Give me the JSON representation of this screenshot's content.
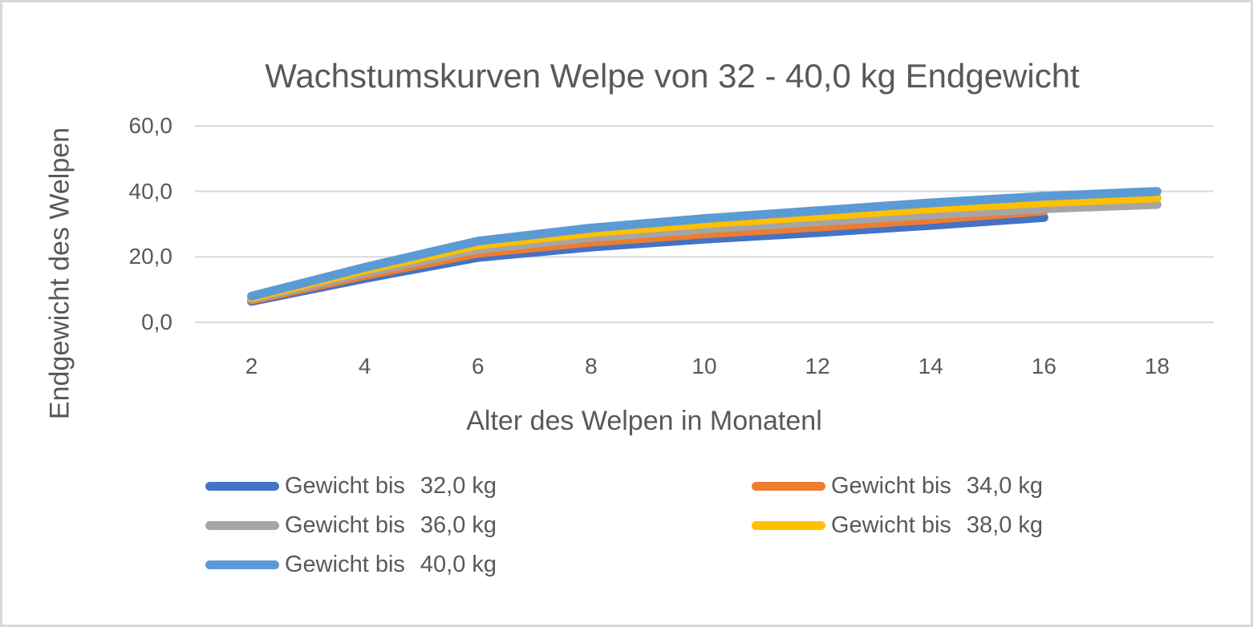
{
  "chart": {
    "title": "Wachstumskurven Welpe von 32 - 40,0 kg Endgewicht",
    "y_axis_title": "Endgewicht des Welpen",
    "x_axis_title": "Alter des Welpen in Monatenl"
  },
  "legend": {
    "items": [
      {
        "prefix": "Gewicht bis",
        "value": "32,0 kg",
        "color": "#4472C4"
      },
      {
        "prefix": "Gewicht bis",
        "value": "34,0 kg",
        "color": "#ED7D31"
      },
      {
        "prefix": "Gewicht bis",
        "value": "36,0 kg",
        "color": "#A5A5A5"
      },
      {
        "prefix": "Gewicht bis",
        "value": "38,0 kg",
        "color": "#FFC000"
      },
      {
        "prefix": "Gewicht bis",
        "value": "40,0 kg",
        "color": "#5B9BD5"
      }
    ]
  },
  "colors": {
    "text": "#595959",
    "gridline": "#D9D9D9",
    "border": "#D8D8D8",
    "background": "#FFFFFF"
  },
  "chart_data": {
    "type": "line",
    "title": "Wachstumskurven Welpe von 32 - 40,0 kg Endgewicht",
    "xlabel": "Alter des Welpen in Monatenl",
    "ylabel": "Endgewicht des Welpen",
    "x": [
      2,
      4,
      6,
      8,
      10,
      12,
      14,
      16,
      18
    ],
    "x_ticks": [
      {
        "value": 2,
        "label": "2"
      },
      {
        "value": 4,
        "label": "4"
      },
      {
        "value": 6,
        "label": "6"
      },
      {
        "value": 8,
        "label": "8"
      },
      {
        "value": 10,
        "label": "10"
      },
      {
        "value": 12,
        "label": "12"
      },
      {
        "value": 14,
        "label": "14"
      },
      {
        "value": 16,
        "label": "16"
      },
      {
        "value": 18,
        "label": "18"
      }
    ],
    "y_ticks": [
      {
        "value": 0,
        "label": "0,0"
      },
      {
        "value": 20,
        "label": "20,0"
      },
      {
        "value": 40,
        "label": "40,0"
      },
      {
        "value": 60,
        "label": "60,0"
      }
    ],
    "xlim": [
      1,
      19
    ],
    "ylim": [
      0,
      60
    ],
    "grid": "horizontal",
    "legend_position": "bottom-two-columns",
    "line_width": 11,
    "series": [
      {
        "name": "Gewicht bis  32,0 kg",
        "color": "#4472C4",
        "values": [
          6.4,
          13.4,
          19.8,
          23.0,
          25.4,
          27.4,
          29.6,
          32.0,
          null
        ]
      },
      {
        "name": "Gewicht bis  34,0 kg",
        "color": "#ED7D31",
        "values": [
          6.8,
          14.3,
          21.1,
          24.5,
          27.0,
          29.1,
          31.4,
          34.0,
          null
        ]
      },
      {
        "name": "Gewicht bis  36,0 kg",
        "color": "#A5A5A5",
        "values": [
          7.2,
          15.1,
          22.3,
          25.9,
          28.5,
          30.7,
          32.9,
          34.7,
          36.0
        ]
      },
      {
        "name": "Gewicht bis  38,0 kg",
        "color": "#FFC000",
        "values": [
          7.6,
          16.0,
          23.6,
          27.4,
          30.1,
          32.4,
          34.7,
          36.6,
          38.0
        ]
      },
      {
        "name": "Gewicht bis  40,0 kg",
        "color": "#5B9BD5",
        "values": [
          8.0,
          16.8,
          24.8,
          28.8,
          31.7,
          34.1,
          36.5,
          38.5,
          40.0
        ]
      }
    ]
  }
}
